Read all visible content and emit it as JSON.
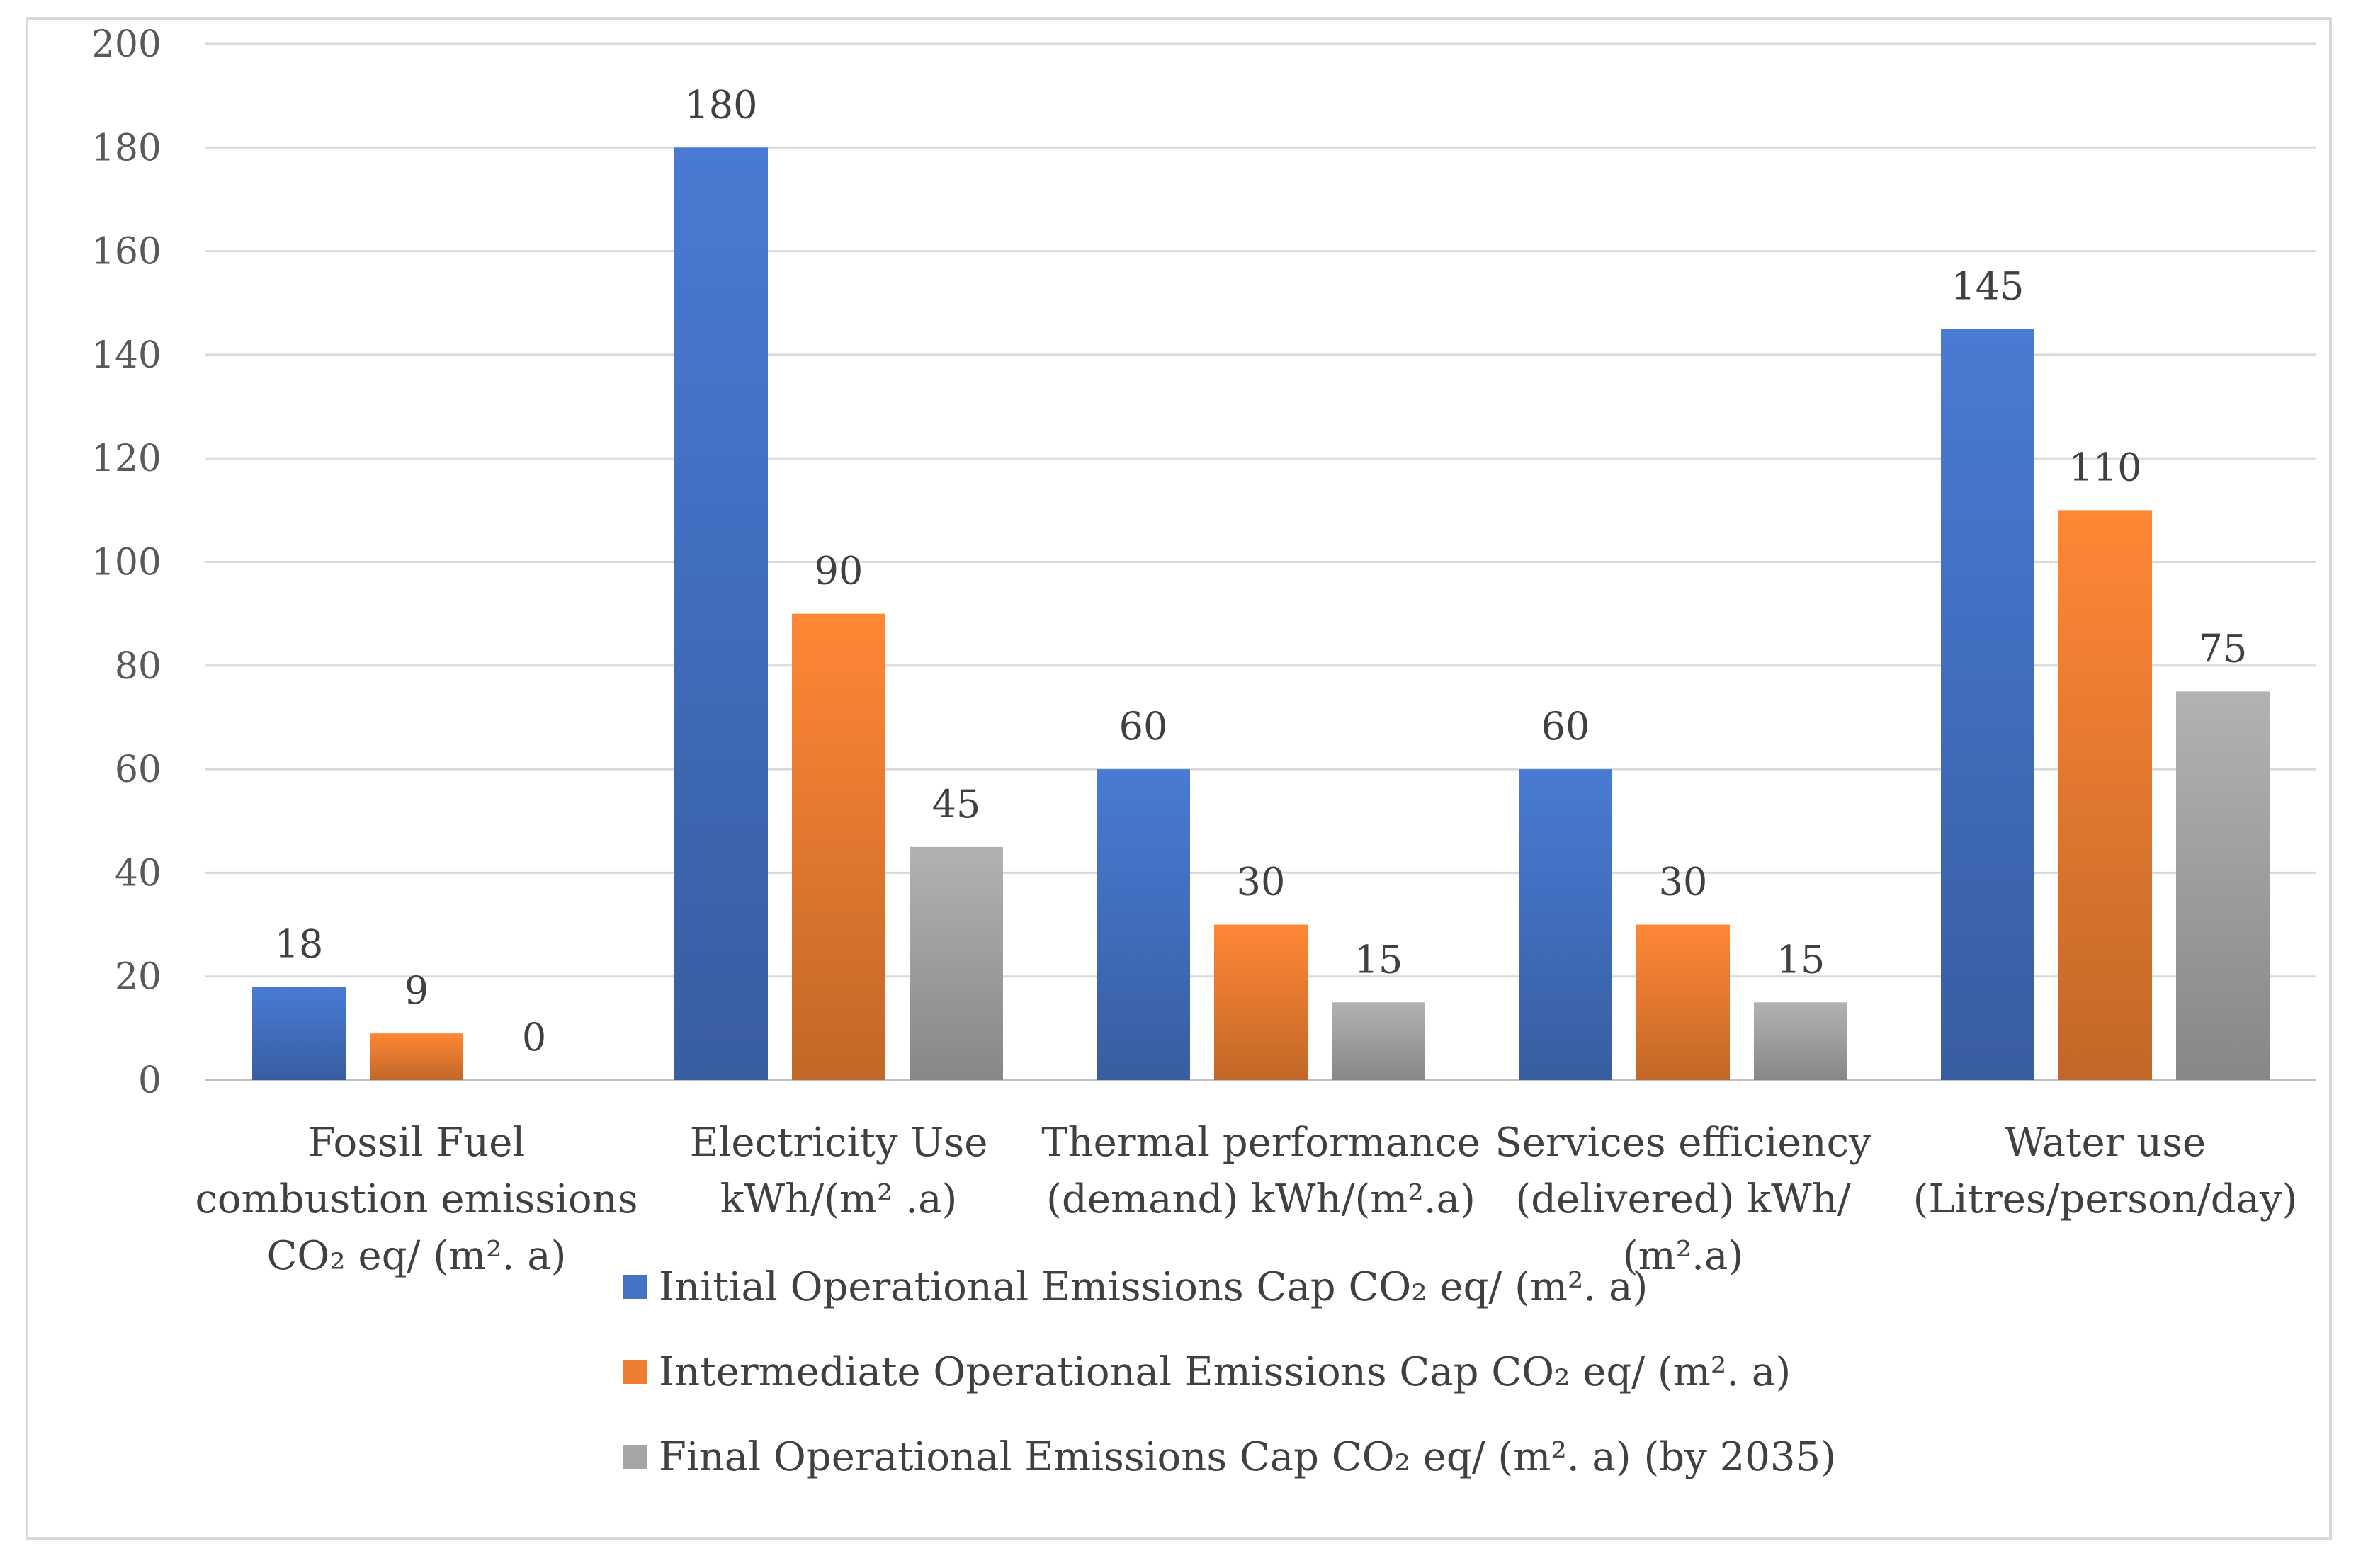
{
  "chart_data": {
    "type": "bar",
    "title": "",
    "xlabel": "",
    "ylabel": "",
    "ylim": [
      0,
      200
    ],
    "ytick_step": 20,
    "grid": true,
    "legend_position": "bottom",
    "categories": [
      [
        "Fossil Fuel",
        "combustion emissions",
        "CO₂ eq/ (m². a)"
      ],
      [
        "Electricity Use",
        "kWh/(m² .a)"
      ],
      [
        "Thermal performance",
        "(demand) kWh/(m².a)"
      ],
      [
        "Services efficiency",
        "(delivered) kWh/",
        "(m².a)"
      ],
      [
        "Water use",
        "(Litres/person/day)"
      ]
    ],
    "series": [
      {
        "name": "Initial Operational  Emissions Cap  CO₂ eq/ (m². a)",
        "color": "#4472c4",
        "values": [
          18,
          180,
          60,
          60,
          145
        ]
      },
      {
        "name": "Intermediate Operational  Emissions Cap  CO₂ eq/ (m². a)",
        "color": "#ed7d31",
        "values": [
          9,
          90,
          30,
          30,
          110
        ]
      },
      {
        "name": "Final Operational  Emissions Cap  CO₂ eq/ (m². a) (by 2035)",
        "color": "#a5a5a5",
        "values": [
          0,
          45,
          15,
          15,
          75
        ]
      }
    ]
  }
}
